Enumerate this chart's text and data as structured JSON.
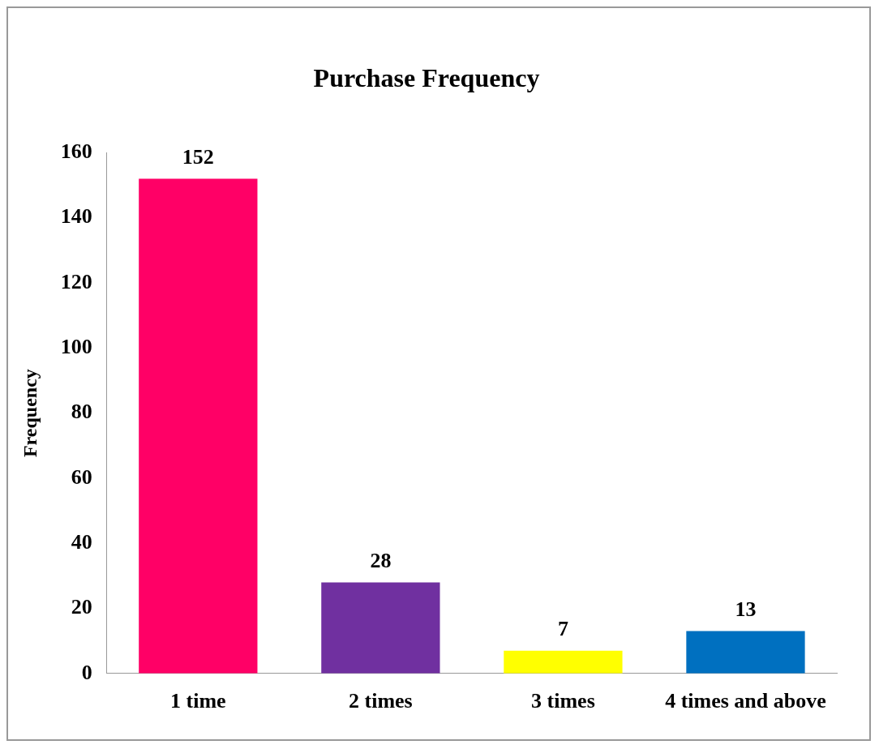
{
  "chart_data": {
    "type": "bar",
    "title": "Purchase Frequency",
    "ylabel": "Frequency",
    "categories": [
      "1 time",
      "2 times",
      "3 times",
      "4 times and above"
    ],
    "values": [
      152,
      28,
      7,
      13
    ],
    "colors": [
      "#ff0066",
      "#7030a0",
      "#ffff00",
      "#0070c0"
    ],
    "ylim": [
      0,
      160
    ],
    "yticks": [
      0,
      20,
      40,
      60,
      80,
      100,
      120,
      140,
      160
    ],
    "grid": false,
    "legend": false,
    "data_labels": true
  }
}
